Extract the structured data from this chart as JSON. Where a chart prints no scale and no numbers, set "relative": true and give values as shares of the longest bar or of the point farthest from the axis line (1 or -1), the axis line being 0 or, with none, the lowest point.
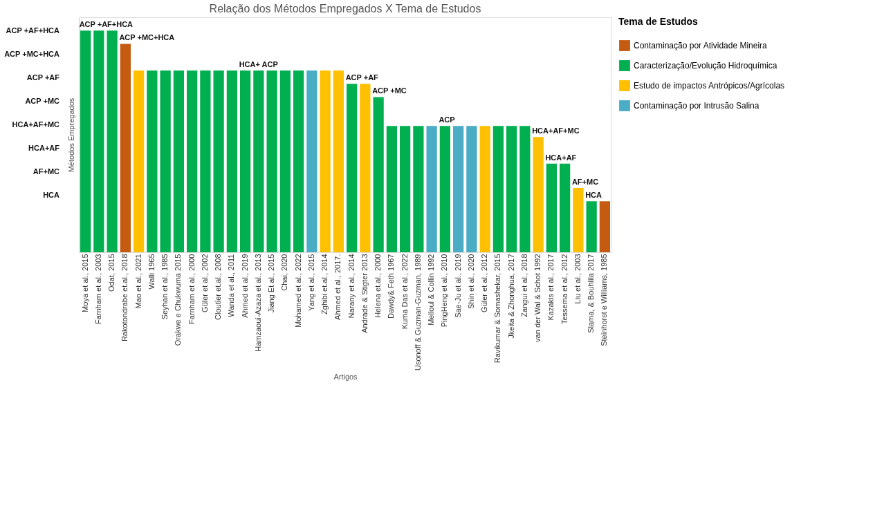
{
  "chart_data": {
    "type": "bar",
    "title": "Relação dos Métodos Empregados X Tema de Estudos",
    "xlabel": "Artigos",
    "ylabel": "Métodos Empregados",
    "legend_title": "Tema de Estudos",
    "legend": "top right",
    "grid": false,
    "relative": true,
    "categories": [
      "Moya et al., 2015",
      "Farnham et al., 2003",
      "Odat, 2015",
      "Rakotondrabe et.al., 2018",
      "Mao et al., 2021",
      "Walli 1965",
      "Seyhan et al., 1985",
      "Orakwe e Chukwuma 2015",
      "Farnham et al., 2000",
      "Güler et al., 2002",
      "Cloutier et.al., 2008",
      "Wanda et al., 2011",
      "Ahmed et al., 2019",
      "Hamzaoui-Azaza et al., 2013",
      "Jiang Et al., 2015",
      "Chai, 2020",
      "Mohamed et al., 2022",
      "Yang et al., 2015",
      "Zghibi et.al., 2014",
      "Ahmed et al., 2017.",
      "Narany et al., 2014",
      "Andrade & Stigter 2013",
      "Helena et.al., 2000",
      "Dawdy& Feth 1967",
      "Kuma Das et al., 2022",
      "Usonoff & Guzman-Guzman, 1989",
      "Melloul & Collin 1992",
      "PingHeng et al., 2010",
      "Sae-Ju et al., 2019",
      "Shin et al., 2020",
      "Güler et al., 2012",
      "Ravikumar & Somashekar, 2015",
      "Jkeita & Zhonghua, 2017",
      "Zangui et al., 2018",
      "van der Wal & Schot 1992",
      "Kazakis et al., 2017",
      "Tessema et al., 2012",
      "Liu et al., 2003",
      "Slama, & Bouhlila 2017",
      "Steinhorst e Williams, 1985"
    ],
    "series": [
      {
        "name": "Contaminação por Atividade Mineira",
        "color": "#c55a11",
        "values": [
          null,
          null,
          null,
          0.94,
          null,
          null,
          null,
          null,
          null,
          null,
          null,
          null,
          null,
          null,
          null,
          null,
          null,
          null,
          null,
          null,
          null,
          null,
          null,
          null,
          null,
          null,
          null,
          null,
          null,
          null,
          null,
          null,
          null,
          null,
          null,
          null,
          null,
          null,
          null,
          0.23
        ]
      },
      {
        "name": "Caracterização/Evolução Hidroquímica",
        "color": "#00b050",
        "values": [
          1,
          1,
          1,
          null,
          null,
          0.82,
          0.82,
          0.82,
          0.82,
          0.82,
          0.82,
          0.82,
          0.82,
          0.82,
          0.82,
          0.82,
          0.82,
          null,
          null,
          null,
          0.76,
          null,
          0.7,
          0.57,
          0.57,
          0.57,
          null,
          0.57,
          null,
          null,
          null,
          0.57,
          0.57,
          0.57,
          null,
          0.4,
          0.4,
          null,
          0.23,
          null
        ]
      },
      {
        "name": "Estudo de impactos Antrópicos/Agrícolas",
        "color": "#ffc000",
        "values": [
          null,
          null,
          null,
          null,
          0.82,
          null,
          null,
          null,
          null,
          null,
          null,
          null,
          null,
          null,
          null,
          null,
          null,
          null,
          0.82,
          0.82,
          null,
          0.76,
          null,
          null,
          null,
          null,
          null,
          null,
          null,
          null,
          0.57,
          null,
          null,
          null,
          0.52,
          null,
          null,
          0.29,
          null,
          null
        ]
      },
      {
        "name": "Contaminação por Intrusão Salina",
        "color": "#4bacc6",
        "values": [
          null,
          null,
          null,
          null,
          null,
          null,
          null,
          null,
          null,
          null,
          null,
          null,
          null,
          null,
          null,
          null,
          null,
          0.82,
          null,
          null,
          null,
          null,
          null,
          null,
          null,
          null,
          0.57,
          null,
          0.57,
          0.57,
          null,
          null,
          null,
          null,
          null,
          null,
          null,
          null,
          null,
          null
        ]
      }
    ],
    "annotations": [
      {
        "text": "ACP +AF+HCA",
        "x": "Moya et al., 2015",
        "y": 1
      },
      {
        "text": "ACP +MC+HCA",
        "x": "Rakotondrabe et.al., 2018",
        "y": 0.94
      },
      {
        "text": "HCA+ ACP",
        "x": "Ahmed et al., 2019",
        "y": 0.82
      },
      {
        "text": "ACP +AF",
        "x": "Narany et al., 2014",
        "y": 0.76
      },
      {
        "text": "ACP +MC",
        "x": "Helena et.al., 2000",
        "y": 0.7
      },
      {
        "text": "ACP",
        "x": "PingHeng et al., 2010",
        "y": 0.57
      },
      {
        "text": "HCA+AF+MC",
        "x": "van der Wal & Schot 1992",
        "y": 0.52
      },
      {
        "text": "HCA+AF",
        "x": "Kazakis et al., 2017",
        "y": 0.4
      },
      {
        "text": "AF+MC",
        "x": "Liu et al., 2003",
        "y": 0.29
      },
      {
        "text": "HCA",
        "x": "Slama, & Bouhlila 2017",
        "y": 0.23
      },
      "ACP +AF+HCA",
      "ACP +MC+HCA",
      "ACP +AF",
      "ACP +MC",
      "HCA+AF+MC",
      "HCA+AF",
      "AF+MC",
      "HCA"
    ]
  }
}
